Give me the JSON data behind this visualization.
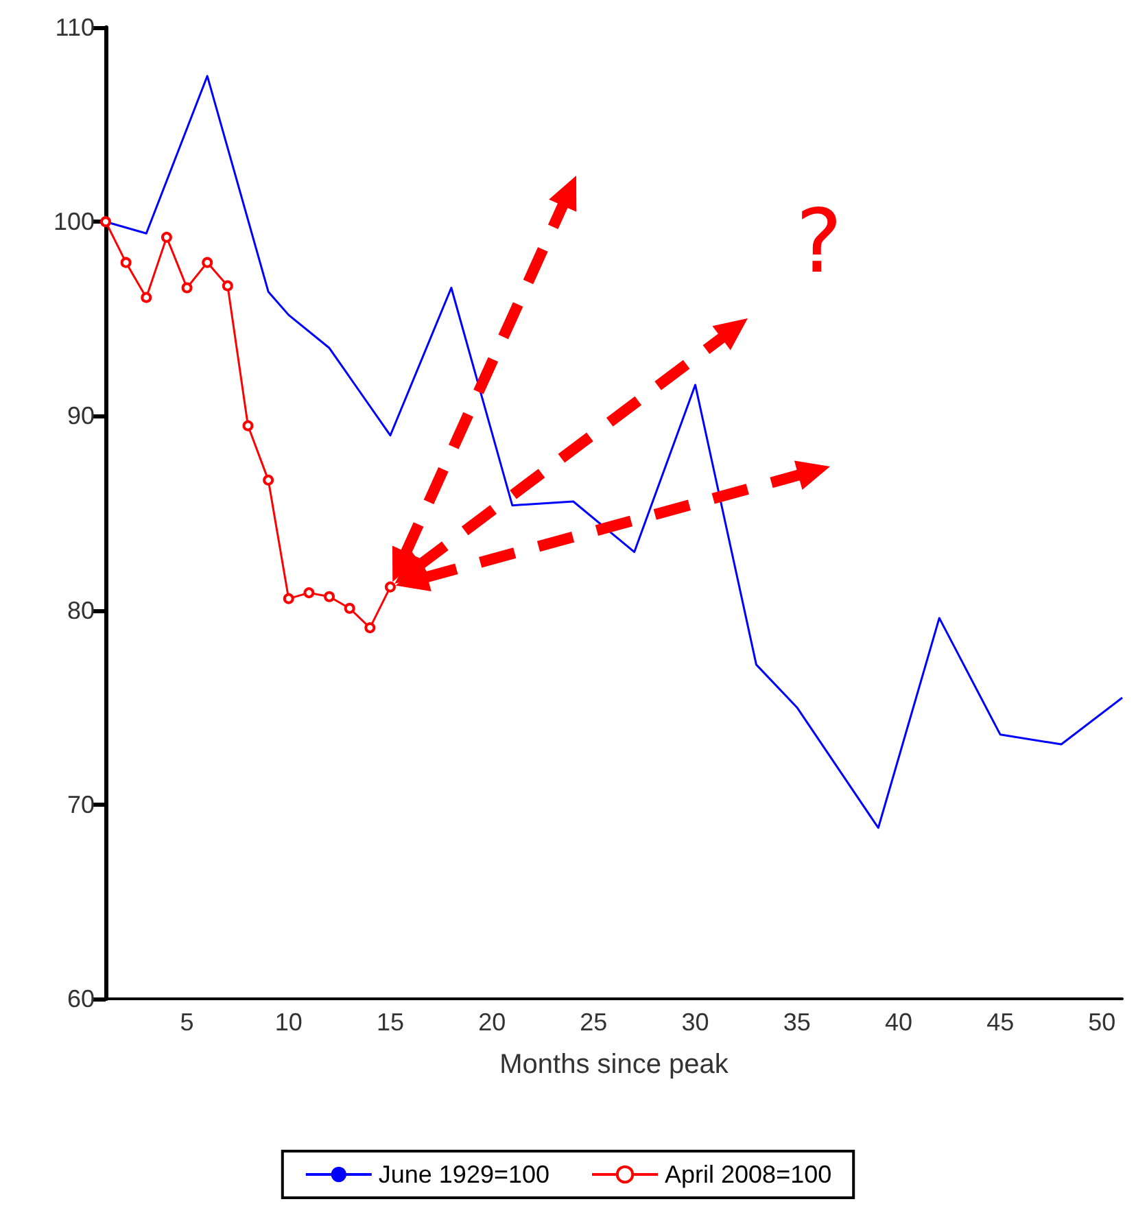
{
  "chart_data": {
    "type": "line",
    "xlabel": "Months since peak",
    "annotations": [
      "?"
    ],
    "series": [
      {
        "name": "June 1929=100",
        "color": "#0000ff",
        "marker": "none",
        "x": [
          1,
          3,
          6,
          9,
          10,
          12,
          13,
          15,
          18,
          21,
          24,
          27,
          30,
          33,
          35,
          39,
          42,
          45,
          48,
          51
        ],
        "values": [
          100,
          99.4,
          107.5,
          96.4,
          95.2,
          93.5,
          92,
          89,
          96.6,
          85.4,
          85.6,
          83,
          91.6,
          77.2,
          75,
          68.8,
          79.6,
          73.6,
          73.1,
          75.5
        ]
      },
      {
        "name": "April 2008=100",
        "color": "#ff0000",
        "marker": "circle",
        "x": [
          1,
          2,
          3,
          4,
          5,
          6,
          7,
          8,
          9,
          10,
          11,
          12,
          13,
          14,
          15
        ],
        "values": [
          100,
          97.9,
          96.1,
          99.2,
          96.6,
          97.9,
          96.7,
          89.5,
          86.7,
          80.6,
          80.9,
          80.7,
          80.1,
          79.1,
          81.2
        ]
      }
    ],
    "xlim": [
      1,
      51
    ],
    "xticks": [
      5,
      10,
      15,
      20,
      25,
      30,
      35,
      40,
      45,
      50
    ],
    "ylim": [
      60,
      110
    ],
    "yticks": [
      60,
      70,
      80,
      90,
      100,
      110
    ],
    "grid": false,
    "legend": "bottom"
  }
}
